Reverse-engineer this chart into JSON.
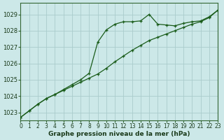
{
  "title": "Graphe pression niveau de la mer (hPa)",
  "bg_color": "#cce8e8",
  "grid_color": "#aacccc",
  "line_color1": "#1a5c1a",
  "line_color2": "#1a5c1a",
  "x_min": 0,
  "x_max": 23,
  "y_min": 1022.5,
  "y_max": 1029.7,
  "hours": [
    0,
    1,
    2,
    3,
    4,
    5,
    6,
    7,
    8,
    9,
    10,
    11,
    12,
    13,
    14,
    15,
    16,
    17,
    18,
    19,
    20,
    21,
    22,
    23
  ],
  "series1": [
    1022.7,
    1023.1,
    1023.5,
    1023.85,
    1024.1,
    1024.4,
    1024.7,
    1025.0,
    1025.4,
    1027.3,
    1028.05,
    1028.4,
    1028.55,
    1028.55,
    1028.6,
    1029.0,
    1028.4,
    1028.35,
    1028.3,
    1028.45,
    1028.55,
    1028.6,
    1028.85,
    1029.25
  ],
  "series2": [
    1022.7,
    1023.1,
    1023.5,
    1023.85,
    1024.1,
    1024.35,
    1024.6,
    1024.85,
    1025.1,
    1025.35,
    1025.7,
    1026.1,
    1026.45,
    1026.8,
    1027.1,
    1027.4,
    1027.6,
    1027.8,
    1028.0,
    1028.2,
    1028.4,
    1028.55,
    1028.8,
    1029.25
  ],
  "yticks": [
    1023,
    1024,
    1025,
    1026,
    1027,
    1028,
    1029
  ],
  "xlabel_fontsize": 5.5,
  "ylabel_fontsize": 6,
  "title_fontsize": 6.5,
  "marker_size": 3,
  "lw": 0.9
}
